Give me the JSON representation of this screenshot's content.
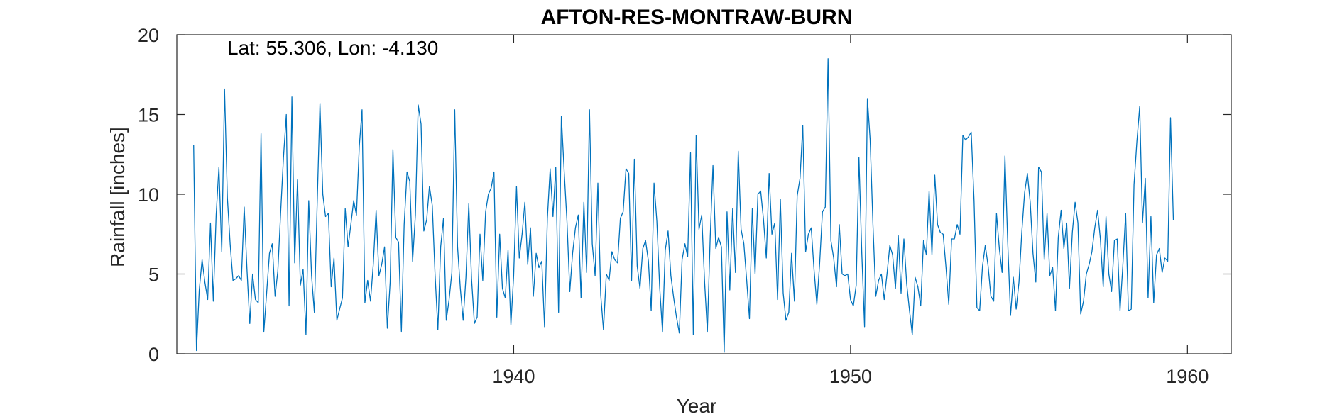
{
  "chart_data": {
    "type": "line",
    "title": "AFTON-RES-MONTRAW-BURN",
    "xlabel": "Year",
    "ylabel": "Rainfall [inches]",
    "annotation": "Lat: 55.306, Lon: -4.130",
    "xlim": [
      1930.0,
      1961.3
    ],
    "ylim": [
      0,
      20
    ],
    "xticks": [
      1940,
      1950,
      1960
    ],
    "yticks": [
      0,
      5,
      10,
      15,
      20
    ],
    "grid": false,
    "line_color": "#0072BD",
    "series": [
      {
        "x_start": 1930.5,
        "x_step": 0.08333,
        "values": [
          13.1,
          0.2,
          4.0,
          5.9,
          4.5,
          3.4,
          8.2,
          3.3,
          8.7,
          11.7,
          6.4,
          16.6,
          9.8,
          6.9,
          4.6,
          4.7,
          4.9,
          4.6,
          9.2,
          5.3,
          1.9,
          5.0,
          3.4,
          3.2,
          13.8,
          1.4,
          3.8,
          6.3,
          6.9,
          3.6,
          5.2,
          8.9,
          12.3,
          15.0,
          3.0,
          16.1,
          5.7,
          10.9,
          4.3,
          5.3,
          1.2,
          9.6,
          4.9,
          2.6,
          9.4,
          15.7,
          10.0,
          8.6,
          8.8,
          4.2,
          6.0,
          2.1,
          2.8,
          3.5,
          9.1,
          6.7,
          8.1,
          9.6,
          8.7,
          13.0,
          15.3,
          3.2,
          4.6,
          3.3,
          5.6,
          9.0,
          4.9,
          5.6,
          6.7,
          1.6,
          4.5,
          12.8,
          7.3,
          7.0,
          1.4,
          8.1,
          11.4,
          10.8,
          5.8,
          8.7,
          15.6,
          14.4,
          7.7,
          8.4,
          10.5,
          9.3,
          5.0,
          1.5,
          6.7,
          8.5,
          2.1,
          3.4,
          5.1,
          15.3,
          6.7,
          4.1,
          2.1,
          4.8,
          9.4,
          4.7,
          1.9,
          2.3,
          7.5,
          4.6,
          8.9,
          10.0,
          10.4,
          11.4,
          2.3,
          7.5,
          4.1,
          3.5,
          6.5,
          1.8,
          4.9,
          10.5,
          6.0,
          7.5,
          9.5,
          5.6,
          7.9,
          3.6,
          6.3,
          5.4,
          5.8,
          1.7,
          8.5,
          11.6,
          8.6,
          11.7,
          2.6,
          14.9,
          11.4,
          8.3,
          3.9,
          6.3,
          7.9,
          8.7,
          3.5,
          9.5,
          5.1,
          15.3,
          6.9,
          4.9,
          10.7,
          3.7,
          1.5,
          5.0,
          4.6,
          6.4,
          5.9,
          5.7,
          8.5,
          8.9,
          11.6,
          11.3,
          4.6,
          12.2,
          5.5,
          4.1,
          6.6,
          7.1,
          5.8,
          2.7,
          10.7,
          8.3,
          4.2,
          1.4,
          6.5,
          7.7,
          4.9,
          3.5,
          2.3,
          1.3,
          5.9,
          6.9,
          6.1,
          12.6,
          1.2,
          13.7,
          7.8,
          8.7,
          4.5,
          1.4,
          7.3,
          11.8,
          6.6,
          7.3,
          6.7,
          0.1,
          8.9,
          4.0,
          9.1,
          5.1,
          12.7,
          7.8,
          6.9,
          4.6,
          2.2,
          9.1,
          5.0,
          10.0,
          10.2,
          8.4,
          6.0,
          11.3,
          7.5,
          8.2,
          3.4,
          9.7,
          3.8,
          2.1,
          2.6,
          6.3,
          3.3,
          9.9,
          11.0,
          14.3,
          6.4,
          7.5,
          7.9,
          5.3,
          3.1,
          5.7,
          8.9,
          9.2,
          18.5,
          7.1,
          6.0,
          4.2,
          8.1,
          5.0,
          4.9,
          5.0,
          3.4,
          3.0,
          4.3,
          12.3,
          6.3,
          1.7,
          16.0,
          13.4,
          8.0,
          3.6,
          4.6,
          5.0,
          3.4,
          5.0,
          6.8,
          6.2,
          4.1,
          7.4,
          3.8,
          7.2,
          4.4,
          2.7,
          1.2,
          4.8,
          4.2,
          3.0,
          7.1,
          6.2,
          10.2,
          6.2,
          11.2,
          8.1,
          7.6,
          7.5,
          5.4,
          3.1,
          7.2,
          7.2,
          8.1,
          7.5,
          13.7,
          13.4,
          13.6,
          13.9,
          9.6,
          2.9,
          2.7,
          5.5,
          6.8,
          5.5,
          3.6,
          3.3,
          8.8,
          6.6,
          5.1,
          12.4,
          7.0,
          2.4,
          4.8,
          2.8,
          4.5,
          7.6,
          10.1,
          11.3,
          9.5,
          6.3,
          4.5,
          11.7,
          11.4,
          5.9,
          8.8,
          4.9,
          5.4,
          2.7,
          7.3,
          9.0,
          6.6,
          8.2,
          4.1,
          7.6,
          9.5,
          8.2,
          2.5,
          3.3,
          5.0,
          5.6,
          6.4,
          7.9,
          9.0,
          7.2,
          4.2,
          8.6,
          5.0,
          3.9,
          7.1,
          7.2,
          2.7,
          5.5,
          8.8,
          2.7,
          2.8,
          10.6,
          13.3,
          15.5,
          8.2,
          11.0,
          3.5,
          8.6,
          3.2,
          6.2,
          6.6,
          5.1,
          6.0,
          5.8,
          14.8,
          8.4
        ]
      }
    ]
  }
}
